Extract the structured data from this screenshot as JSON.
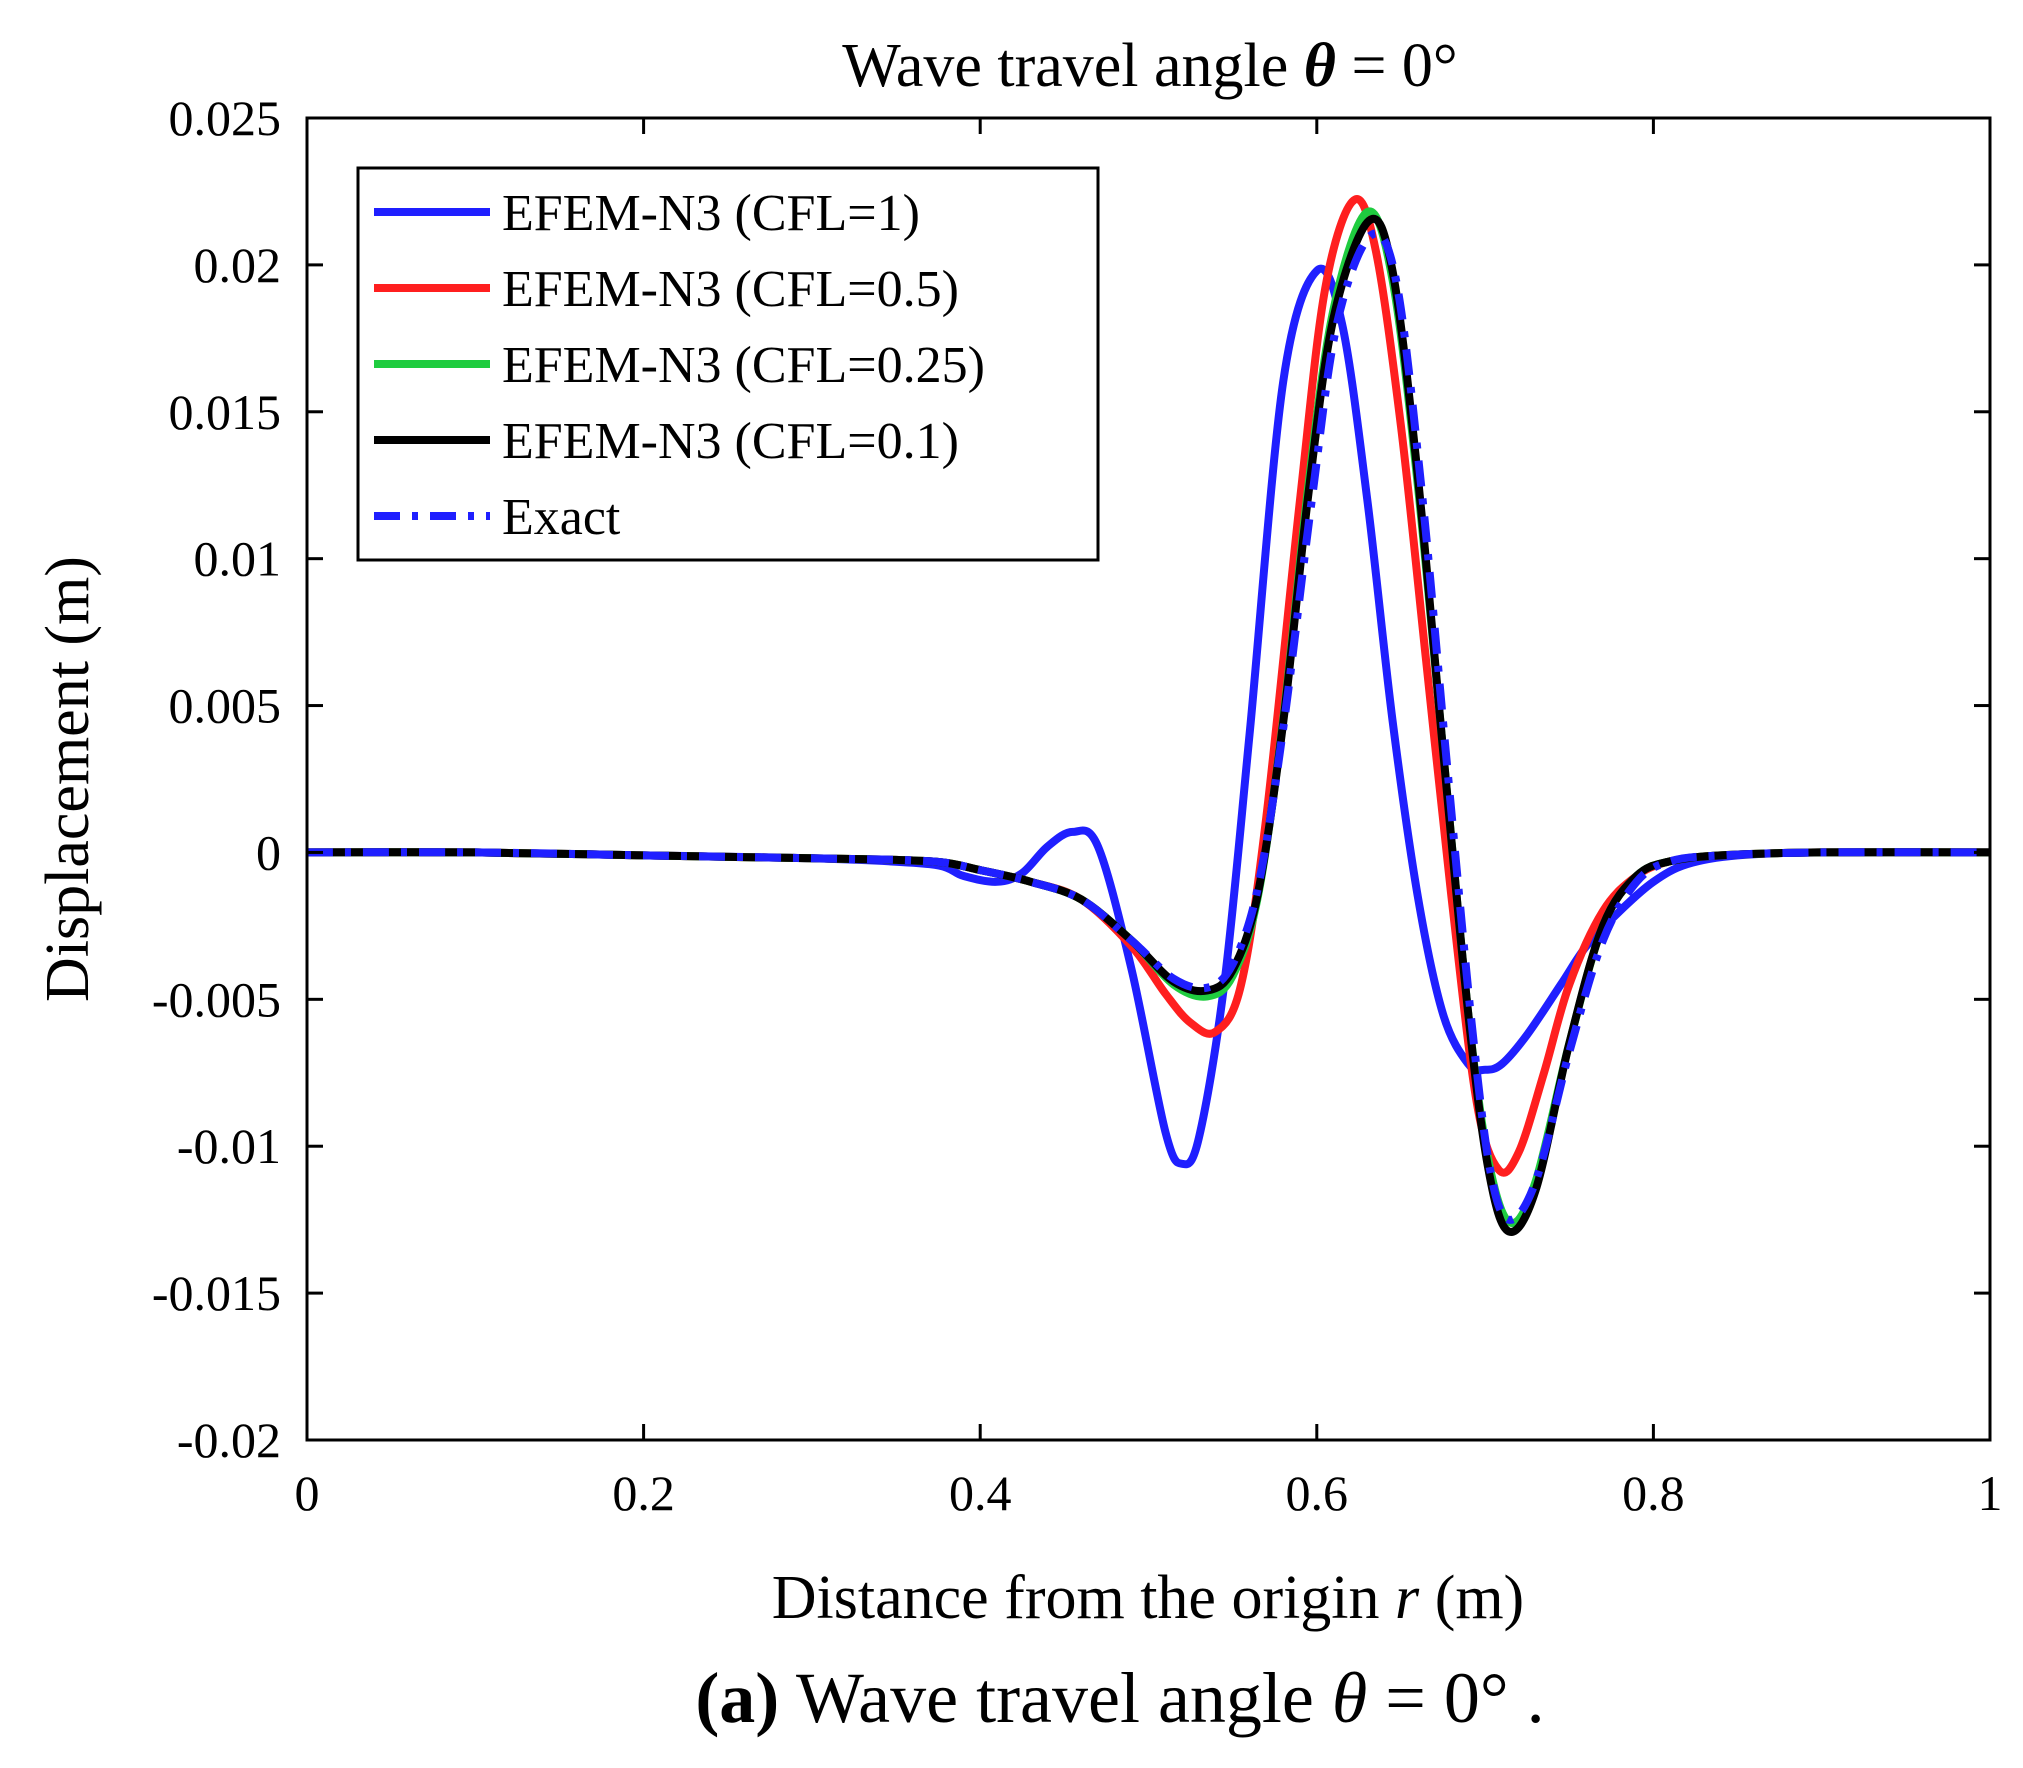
{
  "chart_data": {
    "type": "line",
    "title": {
      "prefix": "Wave travel angle ",
      "symbol": "θ",
      "suffix": " = 0°"
    },
    "xlabel": {
      "prefix": "Distance from the origin ",
      "symbol": "r",
      "suffix": " (m)"
    },
    "ylabel": "Displacement (m)",
    "xlim": [
      0,
      1
    ],
    "ylim": [
      -0.02,
      0.025
    ],
    "xticks": [
      {
        "value": 0,
        "label": "0"
      },
      {
        "value": 0.2,
        "label": "0.2"
      },
      {
        "value": 0.4,
        "label": "0.4"
      },
      {
        "value": 0.6,
        "label": "0.6"
      },
      {
        "value": 0.8,
        "label": "0.8"
      },
      {
        "value": 1,
        "label": "1"
      }
    ],
    "yticks": [
      {
        "value": 0.025,
        "label": "0.025"
      },
      {
        "value": 0.02,
        "label": "0.02"
      },
      {
        "value": 0.015,
        "label": "0.015"
      },
      {
        "value": 0.01,
        "label": "0.01"
      },
      {
        "value": 0.005,
        "label": "0.005"
      },
      {
        "value": 0,
        "label": "0"
      },
      {
        "value": -0.005,
        "label": "-0.005"
      },
      {
        "value": -0.01,
        "label": "-0.01"
      },
      {
        "value": -0.015,
        "label": "-0.015"
      },
      {
        "value": -0.02,
        "label": "-0.02"
      }
    ],
    "grid": false,
    "legend_position": "top-left",
    "series": [
      {
        "name": "EFEM-N3 (CFL=1)",
        "color": "#1f1fff",
        "dash": "solid",
        "x": [
          0,
          0.1,
          0.2,
          0.3,
          0.37,
          0.39,
          0.41,
          0.425,
          0.44,
          0.455,
          0.47,
          0.49,
          0.51,
          0.52,
          0.53,
          0.545,
          0.56,
          0.58,
          0.6,
          0.615,
          0.63,
          0.645,
          0.66,
          0.675,
          0.69,
          0.7,
          0.71,
          0.725,
          0.745,
          0.76,
          0.78,
          0.8,
          0.82,
          0.85,
          0.9,
          1
        ],
        "y": [
          0,
          0,
          -0.0001,
          -0.0002,
          -0.0004,
          -0.0008,
          -0.001,
          -0.0007,
          0.0002,
          0.0007,
          0.0002,
          -0.004,
          -0.0095,
          -0.0106,
          -0.0097,
          -0.0045,
          0.004,
          0.016,
          0.0198,
          0.018,
          0.012,
          0.0045,
          -0.0015,
          -0.0055,
          -0.0072,
          -0.0074,
          -0.0072,
          -0.0062,
          -0.0045,
          -0.0032,
          -0.002,
          -0.001,
          -0.0004,
          -0.0001,
          0,
          0
        ]
      },
      {
        "name": "EFEM-N3 (CFL=0.5)",
        "color": "#ff1f1f",
        "dash": "solid",
        "x": [
          0,
          0.1,
          0.2,
          0.3,
          0.37,
          0.4,
          0.43,
          0.46,
          0.49,
          0.51,
          0.525,
          0.54,
          0.555,
          0.57,
          0.59,
          0.605,
          0.622,
          0.635,
          0.65,
          0.665,
          0.68,
          0.695,
          0.708,
          0.72,
          0.735,
          0.75,
          0.77,
          0.79,
          0.81,
          0.84,
          0.9,
          1
        ],
        "y": [
          0,
          0,
          -0.0001,
          -0.0002,
          -0.0003,
          -0.0006,
          -0.001,
          -0.0016,
          -0.0032,
          -0.0048,
          -0.0058,
          -0.0061,
          -0.0045,
          0.0012,
          0.012,
          0.0192,
          0.0222,
          0.0205,
          0.0145,
          0.0065,
          -0.0015,
          -0.0085,
          -0.0108,
          -0.0102,
          -0.0075,
          -0.0045,
          -0.002,
          -0.0008,
          -0.0003,
          -0.0001,
          0,
          0
        ]
      },
      {
        "name": "EFEM-N3 (CFL=0.25)",
        "color": "#1fcc3f",
        "dash": "solid",
        "x": [
          0,
          0.1,
          0.2,
          0.3,
          0.37,
          0.4,
          0.43,
          0.46,
          0.49,
          0.515,
          0.535,
          0.55,
          0.565,
          0.58,
          0.595,
          0.61,
          0.63,
          0.645,
          0.66,
          0.675,
          0.69,
          0.702,
          0.715,
          0.73,
          0.75,
          0.77,
          0.79,
          0.81,
          0.84,
          0.9,
          1
        ],
        "y": [
          0,
          0,
          -0.0001,
          -0.0002,
          -0.0003,
          -0.0006,
          -0.001,
          -0.0016,
          -0.003,
          -0.0045,
          -0.0049,
          -0.0042,
          -0.0015,
          0.0045,
          0.0125,
          0.0185,
          0.0218,
          0.0195,
          0.0125,
          0.0035,
          -0.0055,
          -0.0105,
          -0.0126,
          -0.0112,
          -0.0065,
          -0.0025,
          -0.0008,
          -0.0003,
          -0.0001,
          0,
          0
        ]
      },
      {
        "name": "EFEM-N3 (CFL=0.1)",
        "color": "#000000",
        "dash": "solid",
        "x": [
          0,
          0.1,
          0.2,
          0.3,
          0.37,
          0.4,
          0.43,
          0.46,
          0.49,
          0.515,
          0.535,
          0.55,
          0.565,
          0.58,
          0.595,
          0.61,
          0.631,
          0.645,
          0.66,
          0.675,
          0.69,
          0.702,
          0.714,
          0.73,
          0.75,
          0.77,
          0.79,
          0.81,
          0.84,
          0.9,
          1
        ],
        "y": [
          0,
          0,
          -0.0001,
          -0.0002,
          -0.0003,
          -0.0006,
          -0.001,
          -0.0016,
          -0.003,
          -0.0044,
          -0.0047,
          -0.004,
          -0.0014,
          0.0044,
          0.0122,
          0.0182,
          0.0215,
          0.0198,
          0.0128,
          0.0035,
          -0.0055,
          -0.0108,
          -0.0129,
          -0.0115,
          -0.0065,
          -0.0025,
          -0.0008,
          -0.0003,
          -0.0001,
          0,
          0
        ]
      },
      {
        "name": "Exact",
        "color": "#1f1fff",
        "dash": "dashdot",
        "x": [
          0,
          0.1,
          0.2,
          0.3,
          0.37,
          0.4,
          0.43,
          0.46,
          0.49,
          0.515,
          0.535,
          0.55,
          0.565,
          0.58,
          0.597,
          0.612,
          0.632,
          0.647,
          0.662,
          0.677,
          0.692,
          0.703,
          0.714,
          0.73,
          0.75,
          0.77,
          0.79,
          0.81,
          0.84,
          0.9,
          1
        ],
        "y": [
          0,
          0,
          -0.0001,
          -0.0002,
          -0.0003,
          -0.0006,
          -0.001,
          -0.0016,
          -0.003,
          -0.0043,
          -0.0046,
          -0.0038,
          -0.0012,
          0.0042,
          0.012,
          0.018,
          0.021,
          0.0195,
          0.0125,
          0.0032,
          -0.0058,
          -0.0108,
          -0.0125,
          -0.0112,
          -0.0068,
          -0.003,
          -0.001,
          -0.0003,
          -0.0001,
          0,
          0
        ]
      }
    ]
  },
  "caption": {
    "label": "(a)",
    "prefix": " Wave travel angle ",
    "symbol": "θ",
    "suffix": " = 0° ."
  }
}
